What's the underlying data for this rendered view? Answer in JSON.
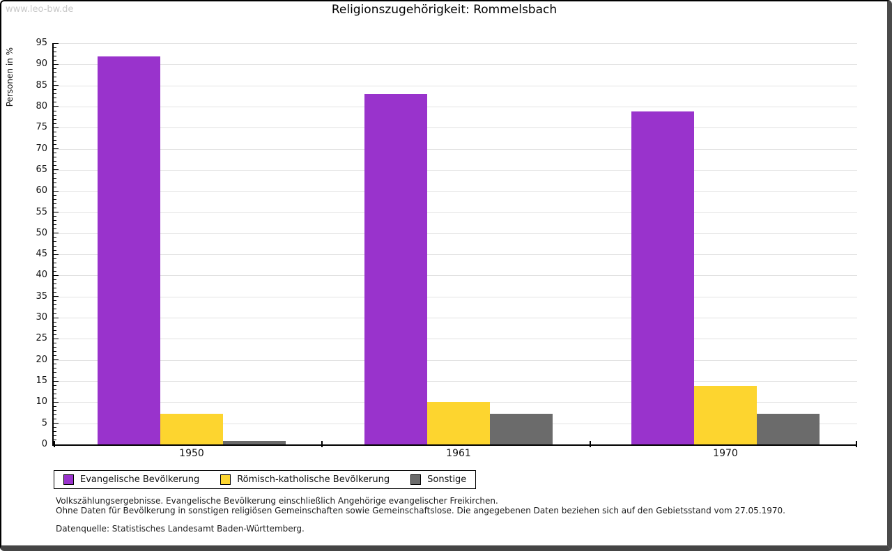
{
  "watermark": "www.leo-bw.de",
  "title": "Religionszugehörigkeit: Rommelsbach",
  "chart_data": {
    "type": "bar",
    "title": "Religionszugehörigkeit: Rommelsbach",
    "xlabel": "",
    "ylabel": "Personen in %",
    "categories": [
      "1950",
      "1961",
      "1970"
    ],
    "series": [
      {
        "name": "Evangelische Bevölkerung",
        "color": "#9933cc",
        "values": [
          91.9,
          83.0,
          78.9
        ]
      },
      {
        "name": "Römisch-katholische Bevölkerung",
        "color": "#fdd52f",
        "values": [
          7.3,
          10.0,
          13.9
        ]
      },
      {
        "name": "Sonstige",
        "color": "#6b6b6b",
        "values": [
          0.8,
          7.2,
          7.2
        ]
      }
    ],
    "ylim": [
      0,
      95
    ],
    "ytick_step": 5,
    "yticks": [
      0,
      5,
      10,
      15,
      20,
      25,
      30,
      35,
      40,
      45,
      50,
      55,
      60,
      65,
      70,
      75,
      80,
      85,
      90,
      95
    ],
    "grid": true,
    "gridline_color": "#e2e2e2",
    "legend_position": "bottom-left"
  },
  "footnotes": {
    "line1": "Volkszählungsergebnisse. Evangelische Bevölkerung einschließlich Angehörige evangelischer Freikirchen.",
    "line2": "Ohne Daten für Bevölkerung in sonstigen religiösen Gemeinschaften sowie Gemeinschaftslose. Die angegebenen Daten beziehen sich auf den Gebietsstand vom 27.05.1970.",
    "source": "Datenquelle: Statistisches Landesamt Baden-Württemberg."
  }
}
